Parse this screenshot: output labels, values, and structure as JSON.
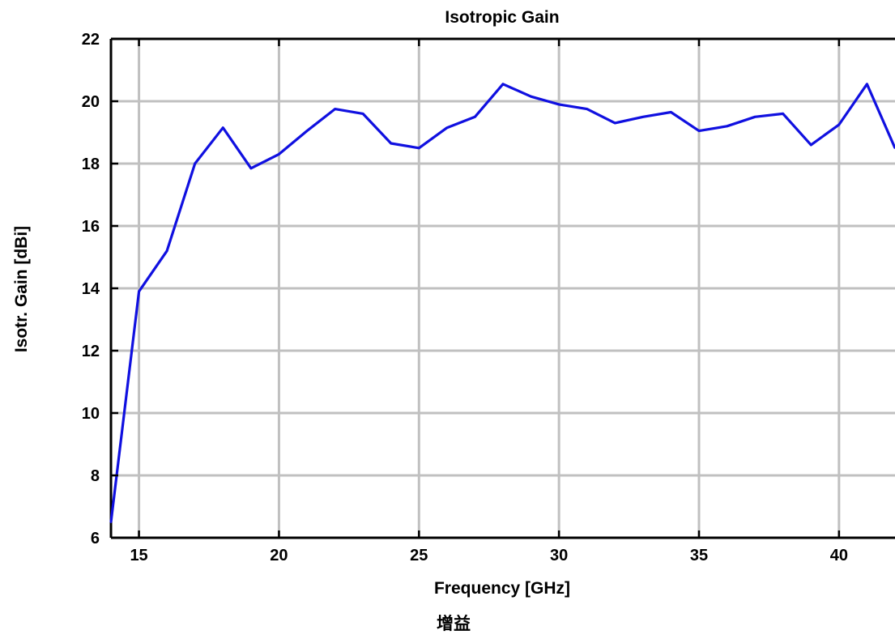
{
  "chart_data": {
    "type": "line",
    "title": "Isotropic Gain",
    "xlabel": "Frequency [GHz]",
    "ylabel": "Isotr. Gain [dBi]",
    "xlim": [
      14,
      42
    ],
    "ylim": [
      6,
      22
    ],
    "xticks": [
      15,
      20,
      25,
      30,
      35,
      40
    ],
    "yticks": [
      6,
      8,
      10,
      12,
      14,
      16,
      18,
      20,
      22
    ],
    "grid": true,
    "series": [
      {
        "color": "#1010e0",
        "x": [
          14,
          15,
          16,
          17,
          18,
          19,
          20,
          21,
          22,
          23,
          24,
          25,
          26,
          27,
          28,
          29,
          30,
          31,
          32,
          33,
          34,
          35,
          36,
          37,
          38,
          39,
          40,
          41,
          42
        ],
        "y": [
          6.5,
          13.9,
          15.2,
          18.0,
          19.15,
          17.85,
          18.3,
          19.05,
          19.75,
          19.6,
          18.65,
          18.5,
          19.15,
          19.5,
          20.55,
          20.15,
          19.9,
          19.75,
          19.3,
          19.5,
          19.65,
          19.05,
          19.2,
          19.5,
          19.6,
          18.6,
          19.25,
          20.55,
          18.5
        ]
      }
    ]
  },
  "caption": "增益"
}
